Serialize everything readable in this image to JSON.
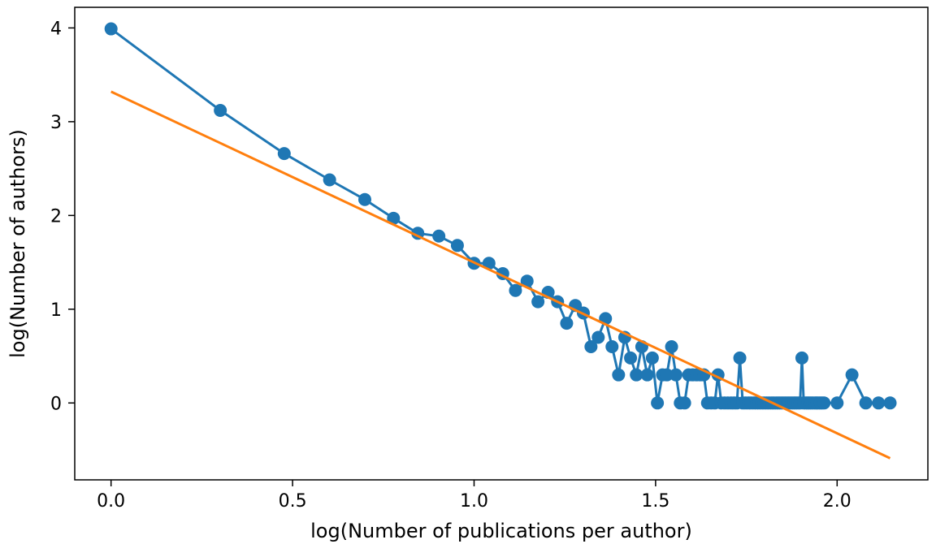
{
  "chart_data": {
    "type": "line",
    "title": "",
    "xlabel": "log(Number of publications per author)",
    "ylabel": "log(Number of authors)",
    "xlim": [
      -0.1,
      2.25
    ],
    "ylim": [
      -0.82,
      4.22
    ],
    "x_ticks": [
      0.0,
      0.5,
      1.0,
      1.5,
      2.0
    ],
    "x_tick_labels": [
      "0.0",
      "0.5",
      "1.0",
      "1.5",
      "2.0"
    ],
    "y_ticks": [
      0,
      1,
      2,
      3,
      4
    ],
    "y_tick_labels": [
      "0",
      "1",
      "2",
      "3",
      "4"
    ],
    "grid": false,
    "series": [
      {
        "color": "#1f77b4",
        "style": "line-with-markers",
        "x": [
          0.0,
          0.301,
          0.477,
          0.602,
          0.699,
          0.778,
          0.845,
          0.903,
          0.954,
          1.0,
          1.041,
          1.079,
          1.114,
          1.146,
          1.176,
          1.204,
          1.23,
          1.255,
          1.279,
          1.301,
          1.322,
          1.342,
          1.362,
          1.38,
          1.398,
          1.415,
          1.431,
          1.447,
          1.462,
          1.477,
          1.491,
          1.505,
          1.519,
          1.531,
          1.544,
          1.556,
          1.568,
          1.58,
          1.591,
          1.602,
          1.613,
          1.623,
          1.633,
          1.643,
          1.653,
          1.663,
          1.672,
          1.681,
          1.69,
          1.699,
          1.708,
          1.716,
          1.724,
          1.732,
          1.74,
          1.748,
          1.756,
          1.763,
          1.771,
          1.778,
          1.785,
          1.792,
          1.799,
          1.806,
          1.813,
          1.82,
          1.826,
          1.833,
          1.839,
          1.845,
          1.851,
          1.857,
          1.863,
          1.869,
          1.875,
          1.881,
          1.886,
          1.892,
          1.898,
          1.903,
          1.908,
          1.914,
          1.919,
          1.924,
          1.929,
          1.934,
          1.94,
          1.944,
          1.949,
          1.954,
          1.959,
          1.964,
          2.0,
          2.041,
          2.079,
          2.114,
          2.146
        ],
        "y": [
          3.99,
          3.12,
          2.66,
          2.38,
          2.17,
          1.97,
          1.81,
          1.78,
          1.68,
          1.49,
          1.49,
          1.38,
          1.2,
          1.3,
          1.08,
          1.18,
          1.08,
          0.85,
          1.04,
          0.96,
          0.6,
          0.7,
          0.9,
          0.6,
          0.3,
          0.7,
          0.48,
          0.3,
          0.6,
          0.3,
          0.48,
          0.0,
          0.3,
          0.3,
          0.6,
          0.3,
          0.0,
          0.0,
          0.3,
          0.3,
          0.3,
          0.3,
          0.3,
          0.0,
          0.0,
          0.0,
          0.3,
          0.0,
          0.0,
          0.0,
          0.0,
          0.0,
          0.0,
          0.48,
          0.0,
          0.0,
          0.0,
          0.0,
          0.0,
          0.0,
          0.0,
          0.0,
          0.0,
          0.0,
          0.0,
          0.0,
          0.0,
          0.0,
          0.0,
          0.0,
          0.0,
          0.0,
          0.0,
          0.0,
          0.0,
          0.0,
          0.0,
          0.0,
          0.0,
          0.48,
          0.0,
          0.0,
          0.0,
          0.0,
          0.0,
          0.0,
          0.0,
          0.0,
          0.0,
          0.0,
          0.0,
          0.0,
          0.0,
          0.3,
          0.0,
          0.0,
          0.0
        ]
      },
      {
        "color": "#ff7f0e",
        "style": "line",
        "x": [
          0.0,
          2.146
        ],
        "y": [
          3.32,
          -0.59
        ]
      }
    ]
  }
}
